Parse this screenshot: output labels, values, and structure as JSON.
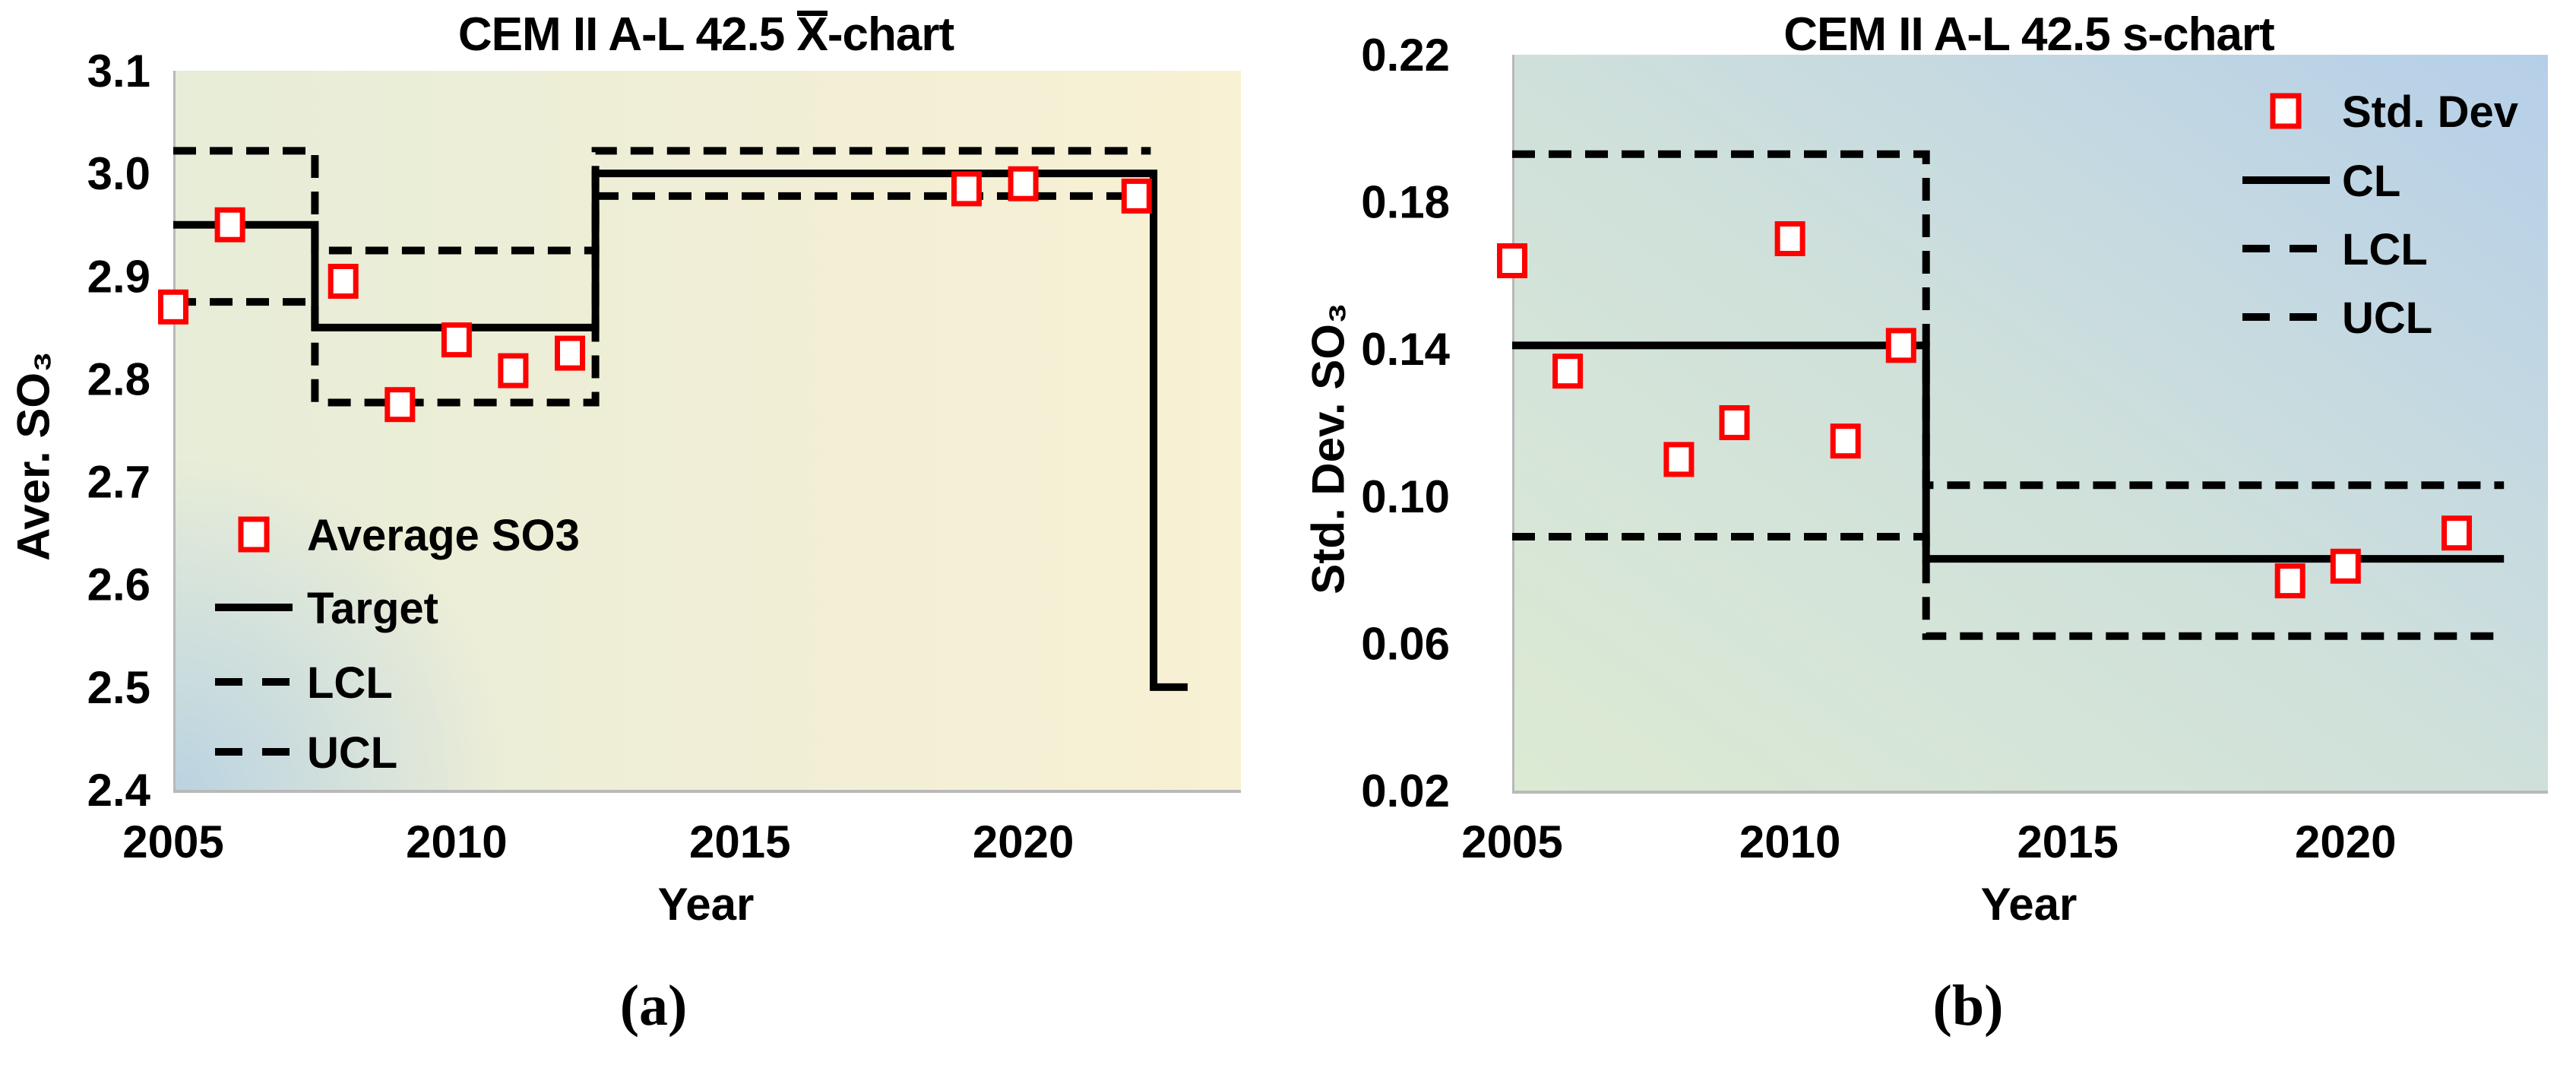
{
  "chart_data": [
    {
      "id": "xbar-chart",
      "type": "scatter",
      "title": "CEM II A-L 42.5 X̄-chart",
      "title_parts": {
        "prefix": "CEM II A-L 42.5 ",
        "overlined": "X",
        "suffix": "-chart"
      },
      "xlabel": "Year",
      "ylabel": "Aver. SO₃",
      "caption": "(a)",
      "xlim": [
        2005,
        2023.8
      ],
      "ylim": [
        2.4,
        3.1
      ],
      "xticks": [
        "2005",
        "2010",
        "2015",
        "2020"
      ],
      "yticks": [
        "3.1",
        "3.0",
        "2.9",
        "2.8",
        "2.7",
        "2.6",
        "2.5",
        "2.4"
      ],
      "grid": false,
      "marker_color": "#ff0000",
      "line_color": "#000000",
      "points": {
        "name": "Average SO3",
        "marker": "open-square",
        "x": [
          2005,
          2006,
          2008,
          2009,
          2010,
          2011,
          2012,
          2019,
          2020,
          2022
        ],
        "y": [
          2.87,
          2.95,
          2.895,
          2.775,
          2.838,
          2.808,
          2.825,
          2.985,
          2.99,
          2.978
        ]
      },
      "lines": [
        {
          "name": "Target",
          "style": "solid",
          "path": [
            [
              2005,
              2.95
            ],
            [
              2007.5,
              2.95
            ],
            [
              2007.5,
              2.85
            ],
            [
              2012.45,
              2.85
            ],
            [
              2012.45,
              3.0
            ],
            [
              2022.3,
              3.0
            ],
            [
              2022.3,
              2.5
            ],
            [
              2022.9,
              2.5
            ]
          ]
        },
        {
          "name": "LCL",
          "style": "dashed",
          "path": [
            [
              2005,
              2.875
            ],
            [
              2007.5,
              2.875
            ],
            [
              2007.5,
              2.777
            ],
            [
              2012.45,
              2.777
            ],
            [
              2012.45,
              2.978
            ],
            [
              2022.25,
              2.978
            ]
          ]
        },
        {
          "name": "UCL",
          "style": "dashed",
          "path": [
            [
              2005,
              3.022
            ],
            [
              2007.5,
              3.022
            ],
            [
              2007.5,
              2.925
            ],
            [
              2012.45,
              2.925
            ],
            [
              2012.45,
              3.022
            ],
            [
              2022.25,
              3.022
            ]
          ]
        }
      ],
      "legend": {
        "position": "inside-bottom-left",
        "entries": [
          {
            "label": "Average SO3",
            "swatch": "marker"
          },
          {
            "label": "Target",
            "swatch": "solid"
          },
          {
            "label": "LCL",
            "swatch": "dashed"
          },
          {
            "label": "UCL",
            "swatch": "dashed"
          }
        ]
      },
      "background": {
        "direction": "to right",
        "stops": [
          "#e7edd8",
          "#f0eed6",
          "#f8f1d4"
        ],
        "corner_glow": "rgba(150,190,232,0.55)"
      }
    },
    {
      "id": "s-chart",
      "type": "scatter",
      "title": "CEM II A-L 42.5 s-chart",
      "title_parts": {
        "prefix": "CEM II A-L 42.5 ",
        "overlined": "",
        "suffix": "s-chart"
      },
      "xlabel": "Year",
      "ylabel": "Std. Dev. SO₃",
      "caption": "(b)",
      "xlim": [
        2005,
        2023.6
      ],
      "ylim": [
        0.02,
        0.22
      ],
      "xticks": [
        "2005",
        "2010",
        "2015",
        "2020"
      ],
      "yticks": [
        "0.22",
        "0.18",
        "0.14",
        "0.10",
        "0.06",
        "0.02"
      ],
      "grid": false,
      "marker_color": "#ff0000",
      "line_color": "#000000",
      "points": {
        "name": "Std. Dev",
        "marker": "open-square",
        "x": [
          2005,
          2006,
          2008,
          2009,
          2010,
          2011,
          2012,
          2019,
          2020,
          2022
        ],
        "y": [
          0.164,
          0.134,
          0.11,
          0.12,
          0.17,
          0.115,
          0.141,
          0.077,
          0.081,
          0.09
        ]
      },
      "lines": [
        {
          "name": "CL",
          "style": "solid",
          "path": [
            [
              2005,
              0.141
            ],
            [
              2012.45,
              0.141
            ],
            [
              2012.45,
              0.083
            ],
            [
              2022.85,
              0.083
            ]
          ]
        },
        {
          "name": "LCL",
          "style": "dashed",
          "path": [
            [
              2005,
              0.089
            ],
            [
              2012.45,
              0.089
            ],
            [
              2012.45,
              0.062
            ],
            [
              2022.85,
              0.062
            ]
          ]
        },
        {
          "name": "UCL",
          "style": "dashed",
          "path": [
            [
              2005,
              0.193
            ],
            [
              2012.45,
              0.193
            ],
            [
              2012.45,
              0.103
            ],
            [
              2022.85,
              0.103
            ]
          ]
        }
      ],
      "legend": {
        "position": "inside-top-right",
        "entries": [
          {
            "label": "Std. Dev",
            "swatch": "marker"
          },
          {
            "label": "CL",
            "swatch": "solid"
          },
          {
            "label": "LCL",
            "swatch": "dashed"
          },
          {
            "label": "UCL",
            "swatch": "dashed"
          }
        ]
      },
      "background": {
        "direction": "to top right",
        "stops": [
          "#dcead3",
          "#cfe0db",
          "#b6cfe9"
        ]
      }
    }
  ]
}
